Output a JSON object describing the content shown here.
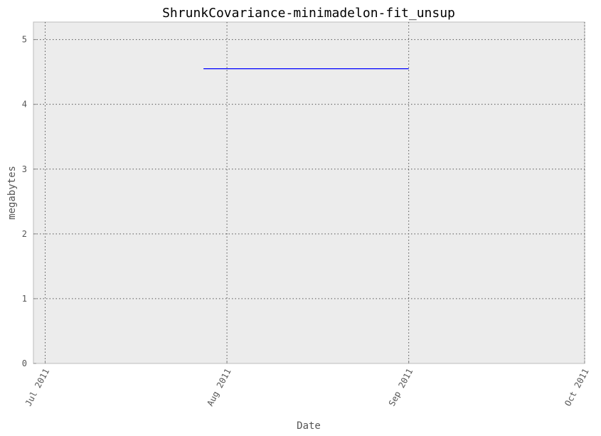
{
  "chart_data": {
    "type": "line",
    "title": "ShrunkCovariance-minimadelon-fit_unsup",
    "xlabel": "Date",
    "ylabel": "megabytes",
    "x_ticks": [
      "Jul 2011",
      "Aug 2011",
      "Sep 2011",
      "Oct 2011"
    ],
    "y_ticks": [
      "0",
      "1",
      "2",
      "3",
      "4",
      "5"
    ],
    "xlim": [
      "2011-06-29",
      "2011-10-01"
    ],
    "ylim": [
      0,
      5.27
    ],
    "grid": true,
    "background": "#ececec",
    "series": [
      {
        "color": "#0000ff",
        "points": [
          {
            "x": "2011-07-28",
            "y": 4.55
          },
          {
            "x": "2011-09-01",
            "y": 4.55
          }
        ]
      }
    ]
  }
}
